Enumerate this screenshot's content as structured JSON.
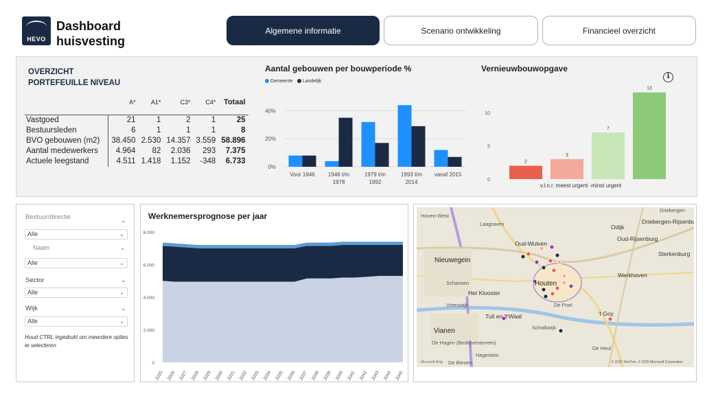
{
  "header": {
    "logo_text": "HEVO",
    "title_line1": "Dashboard",
    "title_line2": "huisvesting",
    "tabs": [
      {
        "label": "Algemene informatie",
        "active": true
      },
      {
        "label": "Scenario ontwikkeling",
        "active": false
      },
      {
        "label": "Financieel overzicht",
        "active": false
      }
    ]
  },
  "overview": {
    "title_line1": "OVERZICHT",
    "title_line2": "PORTEFEUILLE NIVEAU",
    "columns": [
      "A*",
      "A1*",
      "C3*",
      "C4*",
      "Totaal"
    ],
    "rows": [
      {
        "label": "Vastgoed",
        "values": [
          "21",
          "1",
          "2",
          "1",
          "25"
        ]
      },
      {
        "label": "Bestuursleden",
        "values": [
          "6",
          "1",
          "1",
          "1",
          "8"
        ]
      },
      {
        "label": "BVO gebouwen (m2)",
        "values": [
          "38.450",
          "2.530",
          "14.357",
          "3.559",
          "58.896"
        ]
      },
      {
        "label": "Aantal medewerkers",
        "values": [
          "4.964",
          "82",
          "2.036",
          "293",
          "7.375"
        ]
      },
      {
        "label": "Actuele leegstand",
        "values": [
          "4.511",
          "1.418",
          "1.152",
          "-348",
          "6.733"
        ]
      }
    ]
  },
  "colors": {
    "navy": "#1b2a44",
    "gemeente": "#1e90ff",
    "landelijk": "#1b2a44",
    "urgent_red": "#e8604c",
    "urgent_pink": "#f4a99b",
    "light_green": "#c8e6b8",
    "green": "#8cc978",
    "area_light": "#c9d3e3",
    "area_dark": "#1b2a44",
    "area_top": "#5b9bd5"
  },
  "chart_data": [
    {
      "type": "bar",
      "title": "Aantal gebouwen per bouwperiode %",
      "categories": [
        [
          "Voor 1946"
        ],
        [
          "1946 t/m",
          "1978"
        ],
        [
          "1979 t/m",
          "1992"
        ],
        [
          "1993 t/m",
          "2014"
        ],
        [
          "vanaf 2015"
        ]
      ],
      "series": [
        {
          "name": "Gemeente",
          "values": [
            8,
            4,
            32,
            44,
            12
          ]
        },
        {
          "name": "Landelijk",
          "values": [
            8,
            35,
            17,
            29,
            7
          ]
        }
      ],
      "ylim": [
        0,
        50
      ],
      "ticks": [
        0,
        20,
        40
      ],
      "tick_labels": [
        "0%",
        "20%",
        "40%"
      ],
      "legend_position": "top-left"
    },
    {
      "type": "bar",
      "title": "Vernieuwbouwopgave",
      "categories": [
        "",
        "",
        "",
        ""
      ],
      "values": [
        2,
        3,
        7,
        13
      ],
      "data_labels": [
        "2",
        "3",
        "7",
        "13"
      ],
      "xlabel": "v.l.n.r. meest urgent -minst urgent",
      "ylim": [
        0,
        14
      ],
      "ticks": [
        0,
        5,
        10
      ],
      "tick_labels": [
        "0",
        "5",
        "10"
      ]
    },
    {
      "type": "area",
      "title": "Werknemersprognose per jaar",
      "x": [
        "2025",
        "2026",
        "2027",
        "2028",
        "2029",
        "2030",
        "2031",
        "2032",
        "2033",
        "2034",
        "2035",
        "2036",
        "2037",
        "2038",
        "2039",
        "2040",
        "2041",
        "2042",
        "2043",
        "2044",
        "2045"
      ],
      "series": [
        {
          "values": [
            5000,
            4950,
            4950,
            4950,
            4950,
            4950,
            4950,
            4950,
            4950,
            4950,
            4950,
            4950,
            5150,
            5150,
            5150,
            5200,
            5200,
            5250,
            5300,
            5300,
            5300
          ]
        },
        {
          "values": [
            2150,
            2150,
            2100,
            2050,
            2050,
            2050,
            2050,
            2050,
            2050,
            2050,
            2050,
            2050,
            2000,
            2000,
            2000,
            2000,
            2000,
            1950,
            1900,
            1900,
            1900
          ]
        },
        {
          "values": [
            200,
            200,
            200,
            200,
            200,
            200,
            200,
            200,
            200,
            200,
            200,
            200,
            200,
            200,
            200,
            200,
            200,
            200,
            200,
            200,
            200
          ]
        }
      ],
      "ylim": [
        0,
        8000
      ],
      "ticks": [
        0,
        2000,
        4000,
        6000,
        8000
      ],
      "tick_labels": [
        "0",
        "2.000",
        "4.000",
        "6.000",
        "8.000"
      ]
    }
  ],
  "filters": {
    "bestuur_label": "Bestuur/directie",
    "bestuur_value": "Alle",
    "naam_label": "Naam",
    "naam_value": "Alle",
    "sector_label": "Sector",
    "sector_value": "Alle",
    "wijk_label": "Wijk",
    "wijk_value": "Alle",
    "hint": "Houd CTRL ingedrukt om meerdere opties te selecteren"
  },
  "map": {
    "labels": [
      "Hoven-West",
      "Laagraven",
      "Odijk",
      "Driebergen-Rijsenbu",
      "Oud-Wulven",
      "Oud-Rijsenburg",
      "Nieuwegein",
      "Sterkenburg",
      "Schansen",
      "Werkhoven",
      "Houten",
      "Het Klooster",
      "Vreeswijk",
      "De Poel",
      "Tull en 't Waal",
      "'t Goy",
      "Vianen",
      "Schalkwijk",
      "De Hagen (Bedrijventerrein)",
      "De Heul",
      "Hagestein",
      "De Biezen",
      "Driebergen"
    ],
    "attribution": "© 2025 TomTom, © 2025 Microsoft Corporation",
    "brand": "Microsoft Bing",
    "marker_colors": [
      "#1b2a44",
      "#e8604c",
      "#f4a99b",
      "#8e44ad"
    ]
  }
}
